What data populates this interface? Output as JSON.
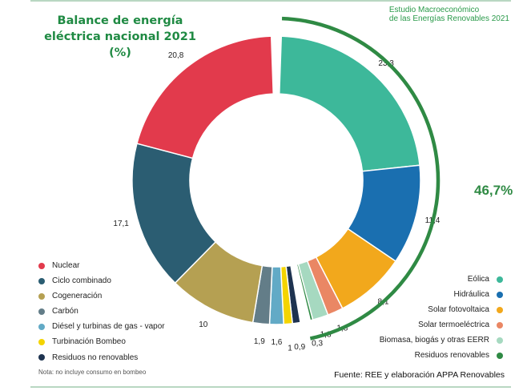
{
  "header": {
    "title_line1": "Balance de energía",
    "title_line2": "eléctrica nacional 2021 (%)",
    "study_line1": "Estudio Macroeconómico",
    "study_line2": "de las Energías Renovables 2021"
  },
  "chart_data": {
    "type": "pie",
    "variant": "donut",
    "title": "Balance de energía eléctrica nacional 2021 (%)",
    "unit": "%",
    "legend_placement": "bottom-left and bottom-right",
    "renewable_share_label": "46,7%",
    "slices": [
      {
        "name": "Eólica",
        "value": 23.3,
        "label": "23,3",
        "color": "#3db89a",
        "group": "renewable"
      },
      {
        "name": "Hidráulica",
        "value": 11.4,
        "label": "11,4",
        "color": "#1a6fb0",
        "group": "renewable"
      },
      {
        "name": "Solar fotovoltaica",
        "value": 8.1,
        "label": "8,1",
        "color": "#f2a81c",
        "group": "renewable"
      },
      {
        "name": "Solar termoeléctrica",
        "value": 1.8,
        "label": "1,8",
        "color": "#ea8764",
        "group": "renewable"
      },
      {
        "name": "Biomasa, biogás y otras EERR",
        "value": 1.8,
        "label": "1,8",
        "color": "#a6d9c0",
        "group": "renewable"
      },
      {
        "name": "Residuos renovables",
        "value": 0.3,
        "label": "0,3",
        "color": "#2f8a44",
        "group": "renewable"
      },
      {
        "name": "Residuos no renovables",
        "value": 0.9,
        "label": "0,9",
        "color": "#1e3350",
        "group": "non-renewable"
      },
      {
        "name": "Turbinación Bombeo",
        "value": 1.0,
        "label": "1",
        "color": "#f4d400",
        "group": "non-renewable"
      },
      {
        "name": "Diésel y turbinas de gas - vapor",
        "value": 1.6,
        "label": "1,6",
        "color": "#62aac6",
        "group": "non-renewable"
      },
      {
        "name": "Carbón",
        "value": 1.9,
        "label": "1,9",
        "color": "#637d88",
        "group": "non-renewable"
      },
      {
        "name": "Cogeneración",
        "value": 10.0,
        "label": "10",
        "color": "#b5a052",
        "group": "non-renewable"
      },
      {
        "name": "Ciclo combinado",
        "value": 17.1,
        "label": "17,1",
        "color": "#2b5d72",
        "group": "non-renewable"
      },
      {
        "name": "Nuclear",
        "value": 20.8,
        "label": "20,8",
        "color": "#e23a4c",
        "group": "non-renewable"
      }
    ]
  },
  "legend_left": [
    {
      "label": "Nuclear",
      "color": "#e23a4c"
    },
    {
      "label": "Ciclo combinado",
      "color": "#2b5d72"
    },
    {
      "label": "Cogeneración",
      "color": "#b5a052"
    },
    {
      "label": "Carbón",
      "color": "#637d88"
    },
    {
      "label": "Diésel y turbinas de gas - vapor",
      "color": "#62aac6"
    },
    {
      "label": "Turbinación Bombeo",
      "color": "#f4d400"
    },
    {
      "label": "Residuos no renovables",
      "color": "#1e3350"
    }
  ],
  "legend_right": [
    {
      "label": "Eólica",
      "color": "#3db89a"
    },
    {
      "label": "Hidráulica",
      "color": "#1a6fb0"
    },
    {
      "label": "Solar fotovoltaica",
      "color": "#f2a81c"
    },
    {
      "label": "Solar termoeléctrica",
      "color": "#ea8764"
    },
    {
      "label": "Biomasa, biogás y otras EERR",
      "color": "#a6d9c0"
    },
    {
      "label": "Residuos renovables",
      "color": "#2f8a44"
    }
  ],
  "footer": {
    "note": "Nota: no incluye consumo en bombeo",
    "source": "Fuente: REE y elaboración APPA Renovables"
  }
}
